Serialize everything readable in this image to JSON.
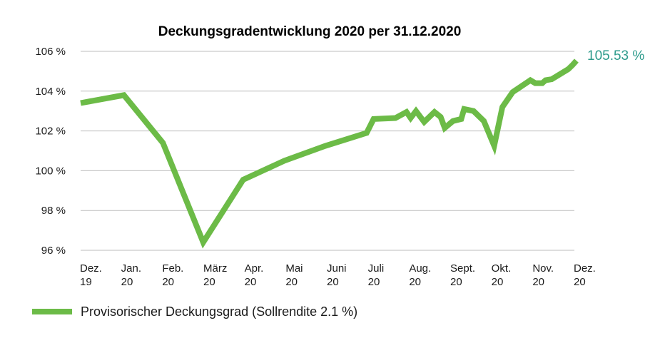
{
  "chart_data": {
    "type": "line",
    "title": "Deckungsgradentwicklung 2020 per 31.12.2020",
    "xlabel": "",
    "ylabel": "",
    "ylim": [
      96,
      106
    ],
    "yticks": [
      {
        "value": 106,
        "label": "106 %"
      },
      {
        "value": 104,
        "label": "104 %"
      },
      {
        "value": 102,
        "label": "102 %"
      },
      {
        "value": 100,
        "label": "100 %"
      },
      {
        "value": 98,
        "label": "98 %"
      },
      {
        "value": 96,
        "label": "96 %"
      }
    ],
    "xlim": [
      0,
      12
    ],
    "xticks": [
      {
        "pos": 0,
        "line1": "Dez.",
        "line2": "19"
      },
      {
        "pos": 1,
        "line1": "Jan.",
        "line2": "20"
      },
      {
        "pos": 2,
        "line1": "Feb.",
        "line2": "20"
      },
      {
        "pos": 3,
        "line1": "März",
        "line2": "20"
      },
      {
        "pos": 4,
        "line1": "Apr.",
        "line2": "20"
      },
      {
        "pos": 5,
        "line1": "Mai",
        "line2": "20"
      },
      {
        "pos": 6,
        "line1": "Juni",
        "line2": "20"
      },
      {
        "pos": 7,
        "line1": "Juli",
        "line2": "20"
      },
      {
        "pos": 8,
        "line1": "Aug.",
        "line2": "20"
      },
      {
        "pos": 9,
        "line1": "Sept.",
        "line2": "20"
      },
      {
        "pos": 10,
        "line1": "Okt.",
        "line2": "20"
      },
      {
        "pos": 11,
        "line1": "Nov.",
        "line2": "20"
      },
      {
        "pos": 12,
        "line1": "Dez.",
        "line2": "20"
      }
    ],
    "grid": true,
    "legend_position": "bottom-left",
    "series": [
      {
        "name": "Provisorischer Deckungsgrad (Sollrendite 2.1 %)",
        "color": "#6cbb47",
        "points": [
          {
            "x": 0.0,
            "y": 103.4
          },
          {
            "x": 1.05,
            "y": 103.8
          },
          {
            "x": 2.0,
            "y": 101.4
          },
          {
            "x": 2.98,
            "y": 96.4
          },
          {
            "x": 3.95,
            "y": 99.55
          },
          {
            "x": 4.95,
            "y": 100.5
          },
          {
            "x": 5.95,
            "y": 101.25
          },
          {
            "x": 6.95,
            "y": 101.9
          },
          {
            "x": 7.12,
            "y": 102.6
          },
          {
            "x": 7.65,
            "y": 102.65
          },
          {
            "x": 7.92,
            "y": 102.95
          },
          {
            "x": 8.02,
            "y": 102.65
          },
          {
            "x": 8.15,
            "y": 103.0
          },
          {
            "x": 8.35,
            "y": 102.45
          },
          {
            "x": 8.6,
            "y": 102.95
          },
          {
            "x": 8.75,
            "y": 102.7
          },
          {
            "x": 8.85,
            "y": 102.15
          },
          {
            "x": 9.05,
            "y": 102.5
          },
          {
            "x": 9.25,
            "y": 102.6
          },
          {
            "x": 9.32,
            "y": 103.1
          },
          {
            "x": 9.55,
            "y": 103.0
          },
          {
            "x": 9.8,
            "y": 102.5
          },
          {
            "x": 10.05,
            "y": 101.25
          },
          {
            "x": 10.25,
            "y": 103.2
          },
          {
            "x": 10.5,
            "y": 103.95
          },
          {
            "x": 10.93,
            "y": 104.55
          },
          {
            "x": 11.05,
            "y": 104.4
          },
          {
            "x": 11.22,
            "y": 104.4
          },
          {
            "x": 11.3,
            "y": 104.55
          },
          {
            "x": 11.45,
            "y": 104.6
          },
          {
            "x": 11.85,
            "y": 105.1
          },
          {
            "x": 11.95,
            "y": 105.3
          },
          {
            "x": 12.05,
            "y": 105.53
          }
        ]
      }
    ],
    "annotations": [
      {
        "text": "105.53 %",
        "color": "#2e9b8c"
      }
    ]
  }
}
